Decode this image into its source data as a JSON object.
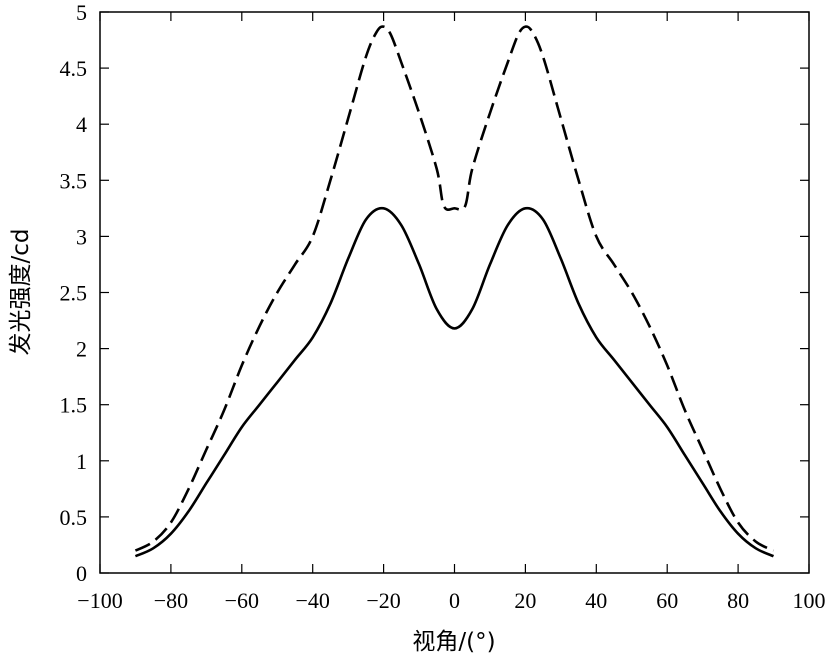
{
  "chart_data": {
    "type": "line",
    "title": "",
    "xlabel": "视角/(°)",
    "ylabel": "发光强度/cd",
    "xlim": [
      -100,
      100
    ],
    "ylim": [
      0,
      5
    ],
    "grid": false,
    "legend": "none",
    "x_ticks": [
      -100,
      -80,
      -60,
      -40,
      -20,
      0,
      20,
      40,
      60,
      80,
      100
    ],
    "x_tick_labels": [
      "−100",
      "−80",
      "−60",
      "−40",
      "−20",
      "0",
      "20",
      "40",
      "60",
      "80",
      "100"
    ],
    "y_ticks": [
      0,
      0.5,
      1,
      1.5,
      2,
      2.5,
      3,
      3.5,
      4,
      4.5,
      5
    ],
    "y_tick_labels": [
      "0",
      "0.5",
      "1",
      "1.5",
      "2",
      "2.5",
      "3",
      "3.5",
      "4",
      "4.5",
      "5"
    ],
    "series": [
      {
        "style": "dashed",
        "color": "#000000",
        "points": [
          [
            -90,
            0.2
          ],
          [
            -85,
            0.28
          ],
          [
            -80,
            0.45
          ],
          [
            -75,
            0.75
          ],
          [
            -70,
            1.1
          ],
          [
            -65,
            1.45
          ],
          [
            -60,
            1.85
          ],
          [
            -55,
            2.2
          ],
          [
            -50,
            2.5
          ],
          [
            -45,
            2.75
          ],
          [
            -40,
            3.0
          ],
          [
            -35,
            3.5
          ],
          [
            -30,
            4.05
          ],
          [
            -25,
            4.6
          ],
          [
            -22,
            4.82
          ],
          [
            -20,
            4.87
          ],
          [
            -18,
            4.8
          ],
          [
            -15,
            4.55
          ],
          [
            -10,
            4.1
          ],
          [
            -5,
            3.6
          ],
          [
            -3,
            3.27
          ],
          [
            0,
            3.25
          ],
          [
            3,
            3.27
          ],
          [
            5,
            3.6
          ],
          [
            10,
            4.1
          ],
          [
            15,
            4.55
          ],
          [
            18,
            4.8
          ],
          [
            20,
            4.87
          ],
          [
            22,
            4.82
          ],
          [
            25,
            4.6
          ],
          [
            30,
            4.05
          ],
          [
            35,
            3.5
          ],
          [
            40,
            3.0
          ],
          [
            45,
            2.75
          ],
          [
            50,
            2.5
          ],
          [
            55,
            2.2
          ],
          [
            60,
            1.85
          ],
          [
            65,
            1.45
          ],
          [
            70,
            1.1
          ],
          [
            75,
            0.75
          ],
          [
            80,
            0.45
          ],
          [
            85,
            0.28
          ],
          [
            90,
            0.2
          ]
        ]
      },
      {
        "style": "solid",
        "color": "#000000",
        "points": [
          [
            -90,
            0.15
          ],
          [
            -85,
            0.22
          ],
          [
            -80,
            0.35
          ],
          [
            -75,
            0.55
          ],
          [
            -70,
            0.8
          ],
          [
            -65,
            1.05
          ],
          [
            -60,
            1.3
          ],
          [
            -55,
            1.5
          ],
          [
            -50,
            1.7
          ],
          [
            -45,
            1.9
          ],
          [
            -40,
            2.1
          ],
          [
            -35,
            2.4
          ],
          [
            -30,
            2.8
          ],
          [
            -25,
            3.15
          ],
          [
            -20,
            3.25
          ],
          [
            -15,
            3.1
          ],
          [
            -10,
            2.75
          ],
          [
            -5,
            2.35
          ],
          [
            0,
            2.18
          ],
          [
            5,
            2.35
          ],
          [
            10,
            2.75
          ],
          [
            15,
            3.1
          ],
          [
            20,
            3.25
          ],
          [
            25,
            3.15
          ],
          [
            30,
            2.8
          ],
          [
            35,
            2.4
          ],
          [
            40,
            2.1
          ],
          [
            45,
            1.9
          ],
          [
            50,
            1.7
          ],
          [
            55,
            1.5
          ],
          [
            60,
            1.3
          ],
          [
            65,
            1.05
          ],
          [
            70,
            0.8
          ],
          [
            75,
            0.55
          ],
          [
            80,
            0.35
          ],
          [
            85,
            0.22
          ],
          [
            90,
            0.15
          ]
        ]
      }
    ]
  }
}
